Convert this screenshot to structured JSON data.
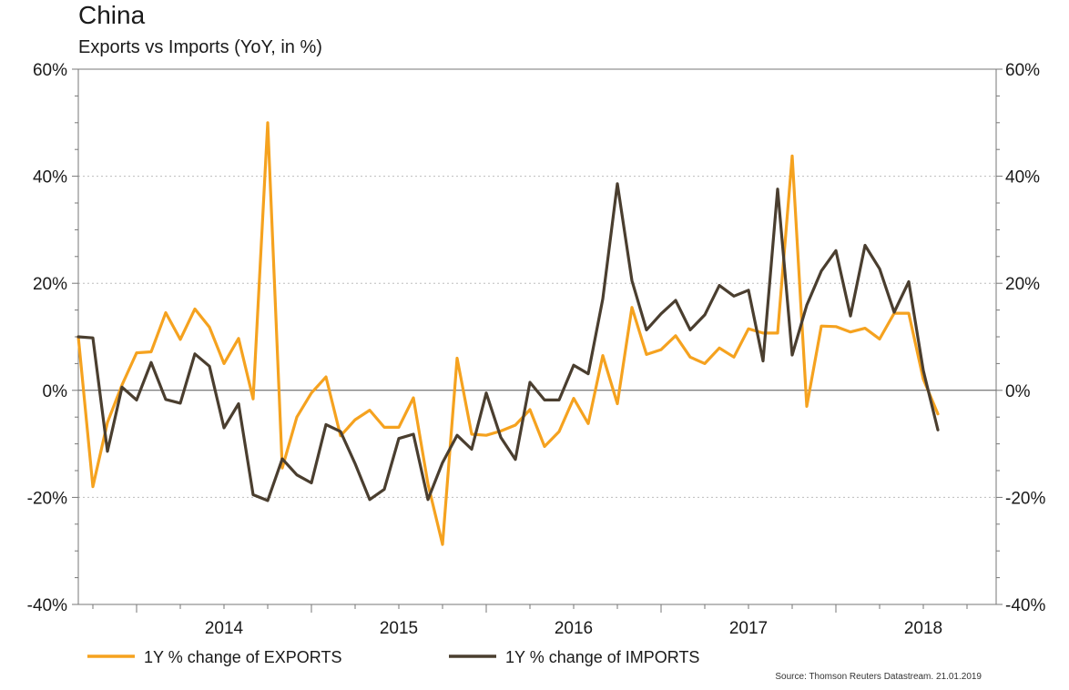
{
  "chart_data": {
    "type": "line",
    "title": "China",
    "subtitle": "Exports vs Imports (YoY, in %)",
    "source": "Source: Thomson Reuters Datastream. 21.01.2019",
    "ylim": [
      -40,
      60
    ],
    "y_ticks": [
      "60%",
      "40%",
      "20%",
      "0%",
      "-20%",
      "-40%"
    ],
    "y_tick_values": [
      60,
      40,
      20,
      0,
      -20,
      -40
    ],
    "x_ticks": [
      "2014",
      "2015",
      "2016",
      "2017",
      "2018"
    ],
    "x_start": "2013-09",
    "x_end": "2018-12",
    "grid": true,
    "legend_position": "bottom",
    "series": [
      {
        "name": "1Y % change of EXPORTS",
        "color": "#f5a21f",
        "values": [
          10,
          -18,
          -6,
          1,
          7,
          7.2,
          14.5,
          9.5,
          15.2,
          11.8,
          5,
          9.7,
          -1.6,
          50,
          -14.5,
          -5,
          -0.5,
          2.5,
          -8.5,
          -5.5,
          -3.7,
          -6.9,
          -6.9,
          -1.4,
          -17.5,
          -28.8,
          6,
          -8.2,
          -8.4,
          -7.6,
          -6.5,
          -3.6,
          -10.5,
          -7.7,
          -1.5,
          -6.2,
          6.5,
          -2.5,
          15.5,
          6.7,
          7.6,
          10.2,
          6.2,
          5,
          7.9,
          6.2,
          11.5,
          10.7,
          10.7,
          43.8,
          -3,
          12,
          11.9,
          10.9,
          11.6,
          9.6,
          14.4,
          14.4,
          2.1,
          -4.4
        ],
        "x_dates": [
          "2013-09",
          "2013-10",
          "2013-11",
          "2013-12",
          "2014-01",
          "2014-02",
          "2014-03",
          "2014-04",
          "2014-05",
          "2014-06",
          "2014-07",
          "2014-08",
          "2014-09",
          "2014-10",
          "2014-11",
          "2014-12",
          "2015-01",
          "2015-02",
          "2015-03",
          "2015-04",
          "2015-05",
          "2015-06",
          "2015-07",
          "2015-08",
          "2015-09",
          "2015-10",
          "2015-11",
          "2015-12",
          "2016-01",
          "2016-02",
          "2016-03",
          "2016-04",
          "2016-05",
          "2016-06",
          "2016-07",
          "2016-08",
          "2016-09",
          "2016-10",
          "2016-11",
          "2016-12",
          "2017-01",
          "2017-02",
          "2017-03",
          "2017-04",
          "2017-05",
          "2017-06",
          "2017-07",
          "2017-08",
          "2017-09",
          "2017-10",
          "2017-11",
          "2017-12",
          "2018-01",
          "2018-02",
          "2018-03",
          "2018-04",
          "2018-05",
          "2018-06",
          "2018-07",
          "2018-08"
        ]
      },
      {
        "name": "1Y % change of IMPORTS",
        "color": "#4a3e2f",
        "values": [
          10,
          9.8,
          -11.4,
          0.6,
          -1.8,
          5.2,
          -1.7,
          -2.4,
          6.8,
          4.5,
          -7,
          -2.5,
          -19.5,
          -20.6,
          -12.8,
          -15.8,
          -17.3,
          -6.4,
          -7.7,
          -13.7,
          -20.4,
          -18.5,
          -9,
          -8.2,
          -20.4,
          -13.5,
          -8.4,
          -11,
          -0.5,
          -8.8,
          -12.9,
          1.5,
          -1.8,
          -1.8,
          4.7,
          3.1,
          17.1,
          38.6,
          20.5,
          11.3,
          14.3,
          16.8,
          11.3,
          14.1,
          19.6,
          17.6,
          18.7,
          5.5,
          37.6,
          6.6,
          15.9,
          22.3,
          26.1,
          13.9,
          27.1,
          22.7,
          14.6,
          20.3,
          3.7,
          -7.4
        ],
        "x_dates": [
          "2013-09",
          "2013-10",
          "2013-11",
          "2013-12",
          "2014-01",
          "2014-02",
          "2014-03",
          "2014-04",
          "2014-05",
          "2014-06",
          "2014-07",
          "2014-08",
          "2014-09",
          "2014-10",
          "2014-11",
          "2014-12",
          "2015-01",
          "2015-02",
          "2015-03",
          "2015-04",
          "2015-05",
          "2015-06",
          "2015-07",
          "2015-08",
          "2015-09",
          "2015-10",
          "2015-11",
          "2015-12",
          "2016-01",
          "2016-02",
          "2016-03",
          "2016-04",
          "2016-05",
          "2016-06",
          "2016-07",
          "2016-08",
          "2016-09",
          "2016-10",
          "2016-11",
          "2016-12",
          "2017-01",
          "2017-02",
          "2017-03",
          "2017-04",
          "2017-05",
          "2017-06",
          "2017-07",
          "2017-08",
          "2017-09",
          "2017-10",
          "2017-11",
          "2017-12",
          "2018-01",
          "2018-02",
          "2018-03",
          "2018-04",
          "2018-05",
          "2018-06",
          "2018-07",
          "2018-08"
        ]
      }
    ]
  }
}
